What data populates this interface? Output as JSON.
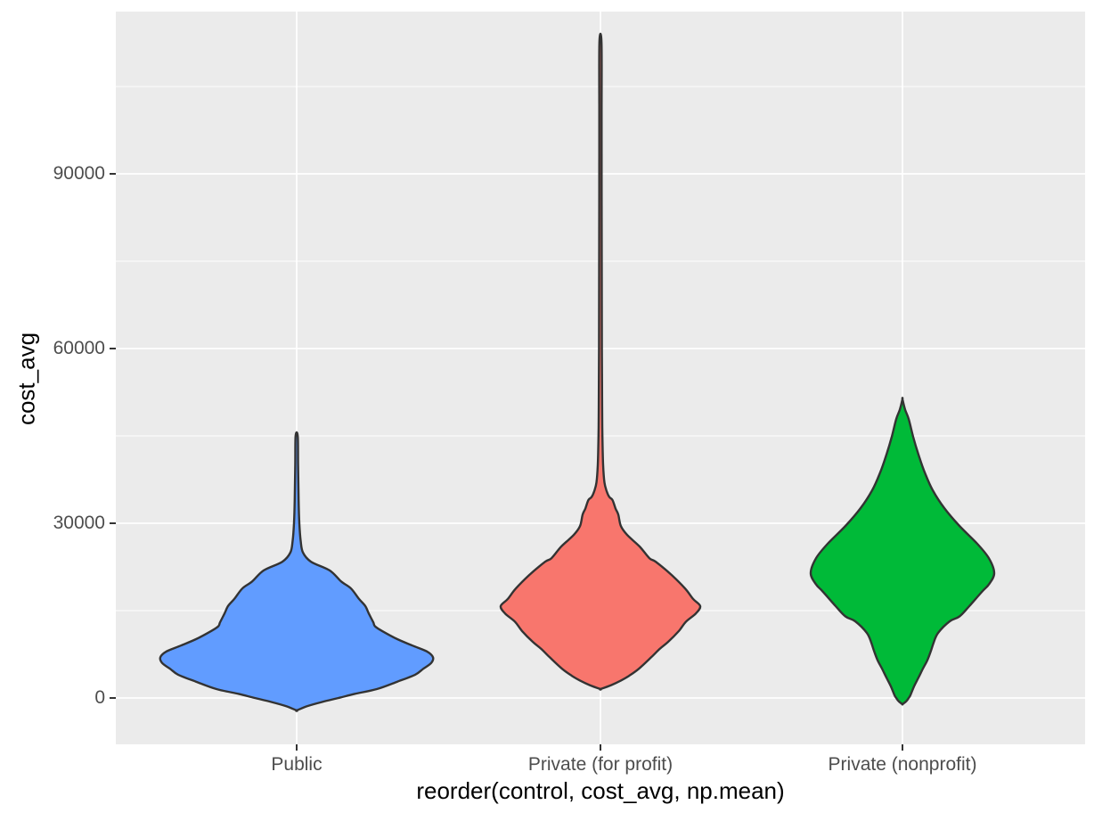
{
  "chart_data": {
    "type": "violin",
    "title": "",
    "xlabel": "reorder(control, cost_avg, np.mean)",
    "ylabel": "cost_avg",
    "categories": [
      "Public",
      "Private (for profit)",
      "Private (nonprofit)"
    ],
    "y_ticks": [
      0,
      30000,
      60000,
      90000
    ],
    "y_minor_ticks": [
      15000,
      45000,
      75000,
      105000
    ],
    "ylim": [
      -7960,
      117860
    ],
    "grid": true,
    "legend": "none",
    "colors": {
      "panel_bg": "#EBEBEB",
      "grid_major": "#FFFFFF",
      "grid_minor": "#FFFFFF",
      "violin_outline": "#333333",
      "tick_text": "#4D4D4D",
      "axis_title_text": "#000000",
      "tick_mark": "#333333"
    },
    "series": [
      {
        "name": "Public",
        "fill": "#619CFF",
        "min_value": -2140,
        "max_value": 45000,
        "widest_at_value": 7000,
        "profile_value_halfwidth": [
          [
            45000,
            1.2
          ],
          [
            40000,
            1.6
          ],
          [
            34000,
            2.2
          ],
          [
            30000,
            3
          ],
          [
            27000,
            4.5
          ],
          [
            25000,
            7
          ],
          [
            23400,
            16
          ],
          [
            21900,
            37
          ],
          [
            20000,
            50
          ],
          [
            18800,
            61
          ],
          [
            17000,
            70
          ],
          [
            15800,
            77
          ],
          [
            14500,
            81
          ],
          [
            13000,
            86
          ],
          [
            12300,
            88
          ],
          [
            11500,
            96
          ],
          [
            10100,
            113
          ],
          [
            9000,
            130
          ],
          [
            8000,
            146
          ],
          [
            7000,
            153
          ],
          [
            6000,
            151
          ],
          [
            5000,
            142
          ],
          [
            4000,
            133
          ],
          [
            2800,
            113
          ],
          [
            1530,
            90
          ],
          [
            700,
            65
          ],
          [
            0,
            47
          ],
          [
            -700,
            28
          ],
          [
            -1400,
            12
          ],
          [
            -2140,
            0
          ]
        ]
      },
      {
        "name": "Private (for profit)",
        "fill": "#F8766D",
        "min_value": 1530,
        "max_value": 112500,
        "widest_at_value": 15770,
        "profile_value_halfwidth": [
          [
            112500,
            1.2
          ],
          [
            100000,
            1.3
          ],
          [
            80000,
            1.4
          ],
          [
            60000,
            1.6
          ],
          [
            50000,
            1.9
          ],
          [
            45000,
            2.2
          ],
          [
            40000,
            3
          ],
          [
            37000,
            4.5
          ],
          [
            35500,
            7
          ],
          [
            34500,
            10
          ],
          [
            34000,
            13.5
          ],
          [
            32500,
            17
          ],
          [
            31500,
            20
          ],
          [
            29500,
            23
          ],
          [
            28000,
            30
          ],
          [
            26000,
            44
          ],
          [
            24000,
            55
          ],
          [
            23400,
            62
          ],
          [
            21100,
            80
          ],
          [
            18800,
            95
          ],
          [
            17000,
            104
          ],
          [
            15770,
            112
          ],
          [
            14500,
            107
          ],
          [
            13100,
            96
          ],
          [
            11500,
            88
          ],
          [
            9640,
            76
          ],
          [
            8500,
            67
          ],
          [
            7000,
            57
          ],
          [
            5000,
            43
          ],
          [
            3800,
            32
          ],
          [
            3000,
            23
          ],
          [
            2200,
            12
          ],
          [
            1530,
            0
          ]
        ]
      },
      {
        "name": "Private (nonprofit)",
        "fill": "#00BA38",
        "min_value": -1070,
        "max_value": 51300,
        "widest_at_value": 21430,
        "profile_value_halfwidth": [
          [
            51300,
            0
          ],
          [
            49500,
            3
          ],
          [
            47900,
            7
          ],
          [
            44850,
            12
          ],
          [
            41790,
            18
          ],
          [
            38720,
            25
          ],
          [
            35660,
            34
          ],
          [
            32600,
            47
          ],
          [
            29540,
            64
          ],
          [
            26480,
            84
          ],
          [
            24000,
            97
          ],
          [
            21430,
            103
          ],
          [
            19500,
            97
          ],
          [
            18370,
            90
          ],
          [
            15770,
            75
          ],
          [
            14000,
            64
          ],
          [
            13160,
            53
          ],
          [
            11170,
            40
          ],
          [
            9500,
            35
          ],
          [
            8110,
            32
          ],
          [
            6500,
            28
          ],
          [
            5050,
            23
          ],
          [
            3500,
            18
          ],
          [
            1990,
            13
          ],
          [
            500,
            9
          ],
          [
            0,
            7
          ],
          [
            -600,
            4
          ],
          [
            -1070,
            0
          ]
        ]
      }
    ]
  }
}
